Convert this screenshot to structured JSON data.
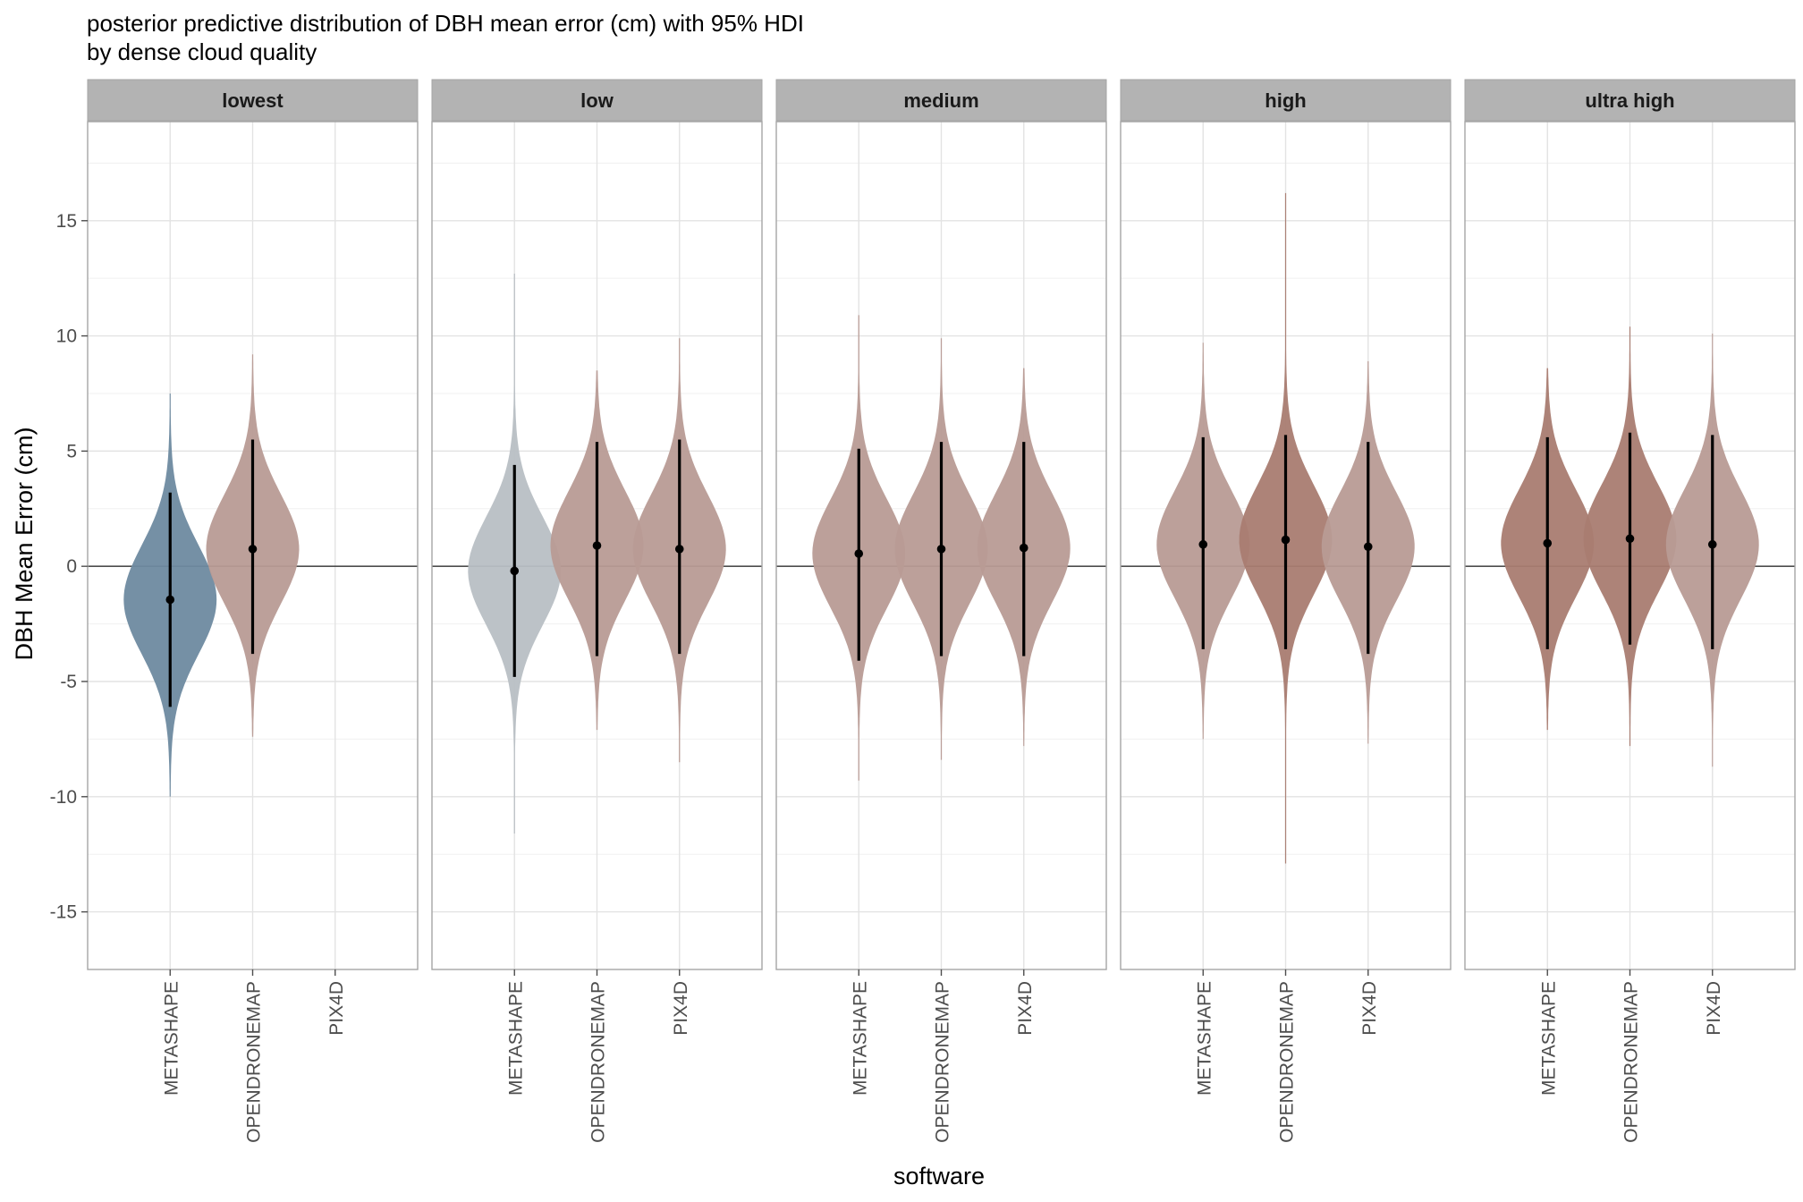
{
  "chart_data": {
    "type": "violin",
    "title": "posterior predictive distribution of DBH mean error (cm) with 95% HDI",
    "subtitle": "by dense cloud quality",
    "xlabel": "software",
    "ylabel": "DBH Mean Error (cm)",
    "ylim": [
      -17.5,
      19.3
    ],
    "yticks": [
      -15,
      -10,
      -5,
      0,
      5,
      10,
      15
    ],
    "ytick_labels": [
      "-15",
      "-10",
      "-5",
      "0",
      "5",
      "10",
      "15"
    ],
    "reference_line_y": 0,
    "grid": true,
    "categories": [
      "METASHAPE",
      "OPENDRONEMAP",
      "PIX4D"
    ],
    "panels": [
      {
        "facet": "lowest",
        "violins": [
          {
            "category": "METASHAPE",
            "center": -1.45,
            "hdi": [
              -6.1,
              3.2
            ],
            "range": [
              -10.0,
              7.5
            ],
            "color": "#6e8aa0"
          },
          {
            "category": "OPENDRONEMAP",
            "center": 0.75,
            "hdi": [
              -3.8,
              5.5
            ],
            "range": [
              -7.4,
              9.2
            ],
            "color": "#b89b95"
          }
        ]
      },
      {
        "facet": "low",
        "violins": [
          {
            "category": "METASHAPE",
            "center": -0.2,
            "hdi": [
              -4.8,
              4.4
            ],
            "range": [
              -11.6,
              12.7
            ],
            "color": "#b8bfc4"
          },
          {
            "category": "OPENDRONEMAP",
            "center": 0.9,
            "hdi": [
              -3.9,
              5.4
            ],
            "range": [
              -7.1,
              8.5
            ],
            "color": "#b89b95"
          },
          {
            "category": "PIX4D",
            "center": 0.75,
            "hdi": [
              -3.8,
              5.5
            ],
            "range": [
              -8.5,
              9.9
            ],
            "color": "#b89b95"
          }
        ]
      },
      {
        "facet": "medium",
        "violins": [
          {
            "category": "METASHAPE",
            "center": 0.55,
            "hdi": [
              -4.1,
              5.1
            ],
            "range": [
              -9.3,
              10.9
            ],
            "color": "#b89b95"
          },
          {
            "category": "OPENDRONEMAP",
            "center": 0.75,
            "hdi": [
              -3.9,
              5.4
            ],
            "range": [
              -8.4,
              9.9
            ],
            "color": "#b89b95"
          },
          {
            "category": "PIX4D",
            "center": 0.8,
            "hdi": [
              -3.9,
              5.4
            ],
            "range": [
              -7.8,
              8.6
            ],
            "color": "#b89b95"
          }
        ]
      },
      {
        "facet": "high",
        "violins": [
          {
            "category": "METASHAPE",
            "center": 0.95,
            "hdi": [
              -3.6,
              5.6
            ],
            "range": [
              -7.5,
              9.7
            ],
            "color": "#b89b95"
          },
          {
            "category": "OPENDRONEMAP",
            "center": 1.15,
            "hdi": [
              -3.6,
              5.7
            ],
            "range": [
              -12.9,
              16.2
            ],
            "color": "#a97c71"
          },
          {
            "category": "PIX4D",
            "center": 0.85,
            "hdi": [
              -3.8,
              5.4
            ],
            "range": [
              -7.7,
              8.9
            ],
            "color": "#b89b95"
          }
        ]
      },
      {
        "facet": "ultra high",
        "violins": [
          {
            "category": "METASHAPE",
            "center": 1.0,
            "hdi": [
              -3.6,
              5.6
            ],
            "range": [
              -7.1,
              8.6
            ],
            "color": "#a97c71"
          },
          {
            "category": "OPENDRONEMAP",
            "center": 1.2,
            "hdi": [
              -3.4,
              5.8
            ],
            "range": [
              -7.8,
              10.4
            ],
            "color": "#a97c71"
          },
          {
            "category": "PIX4D",
            "center": 0.95,
            "hdi": [
              -3.6,
              5.7
            ],
            "range": [
              -8.7,
              10.1
            ],
            "color": "#b89b95"
          }
        ]
      }
    ]
  }
}
